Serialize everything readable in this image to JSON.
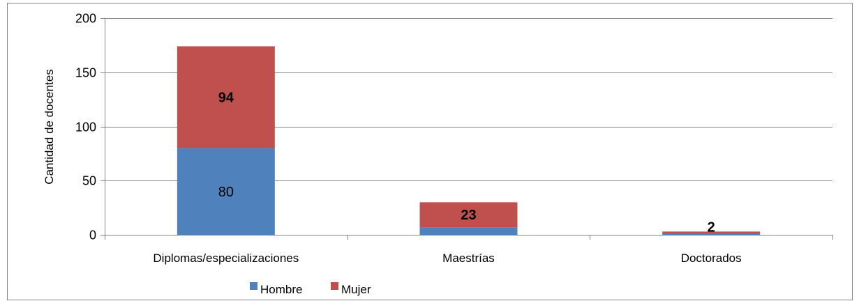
{
  "chart_data": {
    "type": "bar",
    "stacked": true,
    "categories": [
      "Diplomas/especializaciones",
      "Maestrías",
      "Doctorados"
    ],
    "series": [
      {
        "name": "Hombre",
        "values": [
          80,
          7,
          1
        ],
        "labels": [
          "80",
          "",
          ""
        ],
        "label_bold": false
      },
      {
        "name": "Mujer",
        "values": [
          94,
          23,
          2
        ],
        "labels": [
          "94",
          "23",
          "2"
        ],
        "label_bold": true
      }
    ],
    "title": "",
    "xlabel": "",
    "ylabel": "Cantidad de docentes",
    "ylim": [
      0,
      200
    ],
    "yticks": [
      0,
      50,
      100,
      150,
      200
    ],
    "ytick_labels": [
      "0",
      "50",
      "100",
      "150",
      "200"
    ],
    "grid": true,
    "legend_position": "bottom"
  },
  "colors": {
    "Hombre": "#4f81bd",
    "Mujer": "#c0504d",
    "grid": "#868686",
    "axis": "#868686",
    "frame": "#868686"
  }
}
